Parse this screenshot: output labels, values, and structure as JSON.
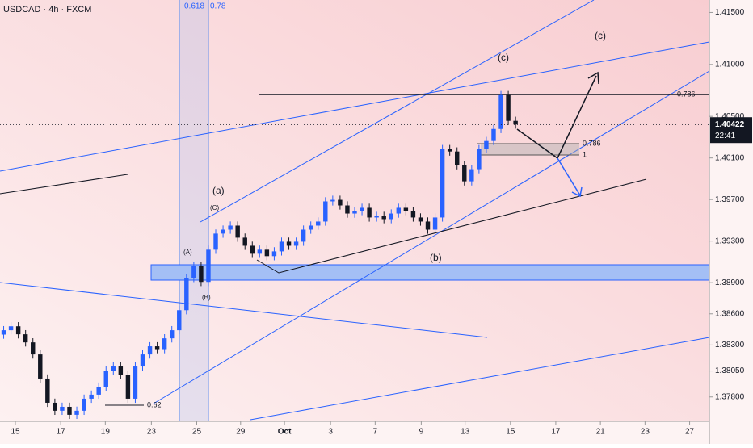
{
  "chart_data": {
    "type": "candlestick",
    "title": "USDCAD · 4h · FXCM",
    "up_color": "#2962ff",
    "down_color": "#131722",
    "xlim": [
      0,
      97
    ],
    "xticks": [
      {
        "value": 2.1,
        "label": "15"
      },
      {
        "value": 8.3,
        "label": "17"
      },
      {
        "value": 14.4,
        "label": "19"
      },
      {
        "value": 20.7,
        "label": "23"
      },
      {
        "value": 26.9,
        "label": "25"
      },
      {
        "value": 32.9,
        "label": "29"
      },
      {
        "value": 38.9,
        "label": "Oct"
      },
      {
        "value": 45.2,
        "label": "3"
      },
      {
        "value": 51.3,
        "label": "7"
      },
      {
        "value": 57.6,
        "label": "9"
      },
      {
        "value": 63.6,
        "label": "13"
      },
      {
        "value": 69.8,
        "label": "15"
      },
      {
        "value": 76,
        "label": "17"
      },
      {
        "value": 82.1,
        "label": "21"
      },
      {
        "value": 88.2,
        "label": "23"
      },
      {
        "value": 94.3,
        "label": "27"
      }
    ],
    "ylim": [
      1.37565,
      1.4162
    ],
    "yticks": [
      {
        "value": 1.415,
        "label": "1.41500"
      },
      {
        "value": 1.41,
        "label": "1.41000"
      },
      {
        "value": 1.405,
        "label": "1.40500"
      },
      {
        "value": 1.401,
        "label": "1.40100"
      },
      {
        "value": 1.397,
        "label": "1.39700"
      },
      {
        "value": 1.393,
        "label": "1.39300"
      },
      {
        "value": 1.389,
        "label": "1.38900"
      },
      {
        "value": 1.386,
        "label": "1.38600"
      },
      {
        "value": 1.383,
        "label": "1.38300"
      },
      {
        "value": 1.3805,
        "label": "1.38050"
      },
      {
        "value": 1.378,
        "label": "1.37800"
      }
    ],
    "open": [
      1.384,
      1.38442,
      1.3848,
      1.38403,
      1.38325,
      1.38209,
      1.37977,
      1.37744,
      1.37667,
      1.37705,
      1.37628,
      1.37667,
      1.37783,
      1.37822,
      1.37899,
      1.38054,
      1.38093,
      1.38015,
      1.37783,
      1.38093,
      1.38209,
      1.38287,
      1.3826,
      1.38364,
      1.38442,
      1.38635,
      1.38945,
      1.39062,
      1.38907,
      1.39217,
      1.39372,
      1.3941,
      1.39449,
      1.39333,
      1.39255,
      1.39178,
      1.39217,
      1.39155,
      1.39201,
      1.39294,
      1.39255,
      1.39294,
      1.3941,
      1.39449,
      1.39488,
      1.39682,
      1.39697,
      1.39643,
      1.39565,
      1.39589,
      1.3962,
      1.39527,
      1.39542,
      1.39511,
      1.39565,
      1.3962,
      1.39589,
      1.39527,
      1.39488,
      1.3941,
      1.39527,
      1.40185,
      1.40162,
      1.4003,
      1.39875,
      1.39992,
      1.40185,
      1.40263,
      1.40379,
      1.40705,
      1.40457
    ],
    "high": [
      1.38482,
      1.3852,
      1.3852,
      1.38443,
      1.38365,
      1.38249,
      1.38017,
      1.37784,
      1.37745,
      1.37745,
      1.37707,
      1.37823,
      1.37862,
      1.37939,
      1.38094,
      1.38133,
      1.38133,
      1.38055,
      1.38133,
      1.38249,
      1.38327,
      1.38327,
      1.38404,
      1.38482,
      1.38675,
      1.38985,
      1.39102,
      1.39102,
      1.39257,
      1.39412,
      1.3945,
      1.39489,
      1.39489,
      1.39373,
      1.39295,
      1.39257,
      1.39257,
      1.39241,
      1.39334,
      1.39334,
      1.39334,
      1.3945,
      1.39489,
      1.39528,
      1.39722,
      1.39737,
      1.39737,
      1.39683,
      1.39629,
      1.3966,
      1.3966,
      1.39582,
      1.39582,
      1.39605,
      1.3966,
      1.3966,
      1.39629,
      1.39567,
      1.39528,
      1.39567,
      1.40225,
      1.40225,
      1.40202,
      1.4007,
      1.40032,
      1.40225,
      1.40303,
      1.40419,
      1.40745,
      1.40745,
      1.40497
    ],
    "low": [
      1.3836,
      1.38402,
      1.38363,
      1.38285,
      1.38169,
      1.37937,
      1.37704,
      1.37627,
      1.37627,
      1.37588,
      1.37588,
      1.37627,
      1.37743,
      1.37782,
      1.37859,
      1.38014,
      1.37975,
      1.37743,
      1.37743,
      1.38053,
      1.38169,
      1.3822,
      1.3822,
      1.38324,
      1.38402,
      1.38595,
      1.38905,
      1.38867,
      1.38867,
      1.39177,
      1.39332,
      1.3937,
      1.39293,
      1.39215,
      1.39138,
      1.39138,
      1.39115,
      1.39115,
      1.39161,
      1.39215,
      1.39215,
      1.39254,
      1.3937,
      1.39409,
      1.39448,
      1.39642,
      1.39603,
      1.39525,
      1.39525,
      1.39549,
      1.39487,
      1.39487,
      1.39471,
      1.39471,
      1.39525,
      1.39549,
      1.39487,
      1.39448,
      1.3937,
      1.3937,
      1.39487,
      1.40122,
      1.3999,
      1.39835,
      1.39835,
      1.39952,
      1.40145,
      1.40223,
      1.40339,
      1.40417,
      1.40382
    ],
    "close": [
      1.38442,
      1.3848,
      1.38403,
      1.38325,
      1.38209,
      1.37977,
      1.37744,
      1.37667,
      1.37705,
      1.37628,
      1.37667,
      1.37783,
      1.37822,
      1.37899,
      1.38054,
      1.38093,
      1.38015,
      1.37783,
      1.38093,
      1.38209,
      1.38287,
      1.3826,
      1.38364,
      1.38442,
      1.38635,
      1.38945,
      1.39062,
      1.38907,
      1.39217,
      1.39372,
      1.3941,
      1.39449,
      1.39333,
      1.39255,
      1.39178,
      1.39217,
      1.39155,
      1.39201,
      1.39294,
      1.39255,
      1.39294,
      1.3941,
      1.39449,
      1.39488,
      1.39682,
      1.39697,
      1.39643,
      1.39565,
      1.39589,
      1.3962,
      1.39527,
      1.39542,
      1.39511,
      1.39565,
      1.3962,
      1.39589,
      1.39527,
      1.39488,
      1.3941,
      1.39527,
      1.40185,
      1.40162,
      1.4003,
      1.39875,
      1.39992,
      1.40185,
      1.40263,
      1.40379,
      1.40705,
      1.40457,
      1.40422
    ],
    "last_price": 1.40422,
    "countdown": "22:41",
    "annotations": [
      "0.618",
      "0.78",
      "(c)",
      "(c)",
      "(a)",
      "(C)",
      "(A)",
      "(B)",
      "(b)",
      "0.786",
      "0.786",
      "1",
      "0.62"
    ]
  }
}
